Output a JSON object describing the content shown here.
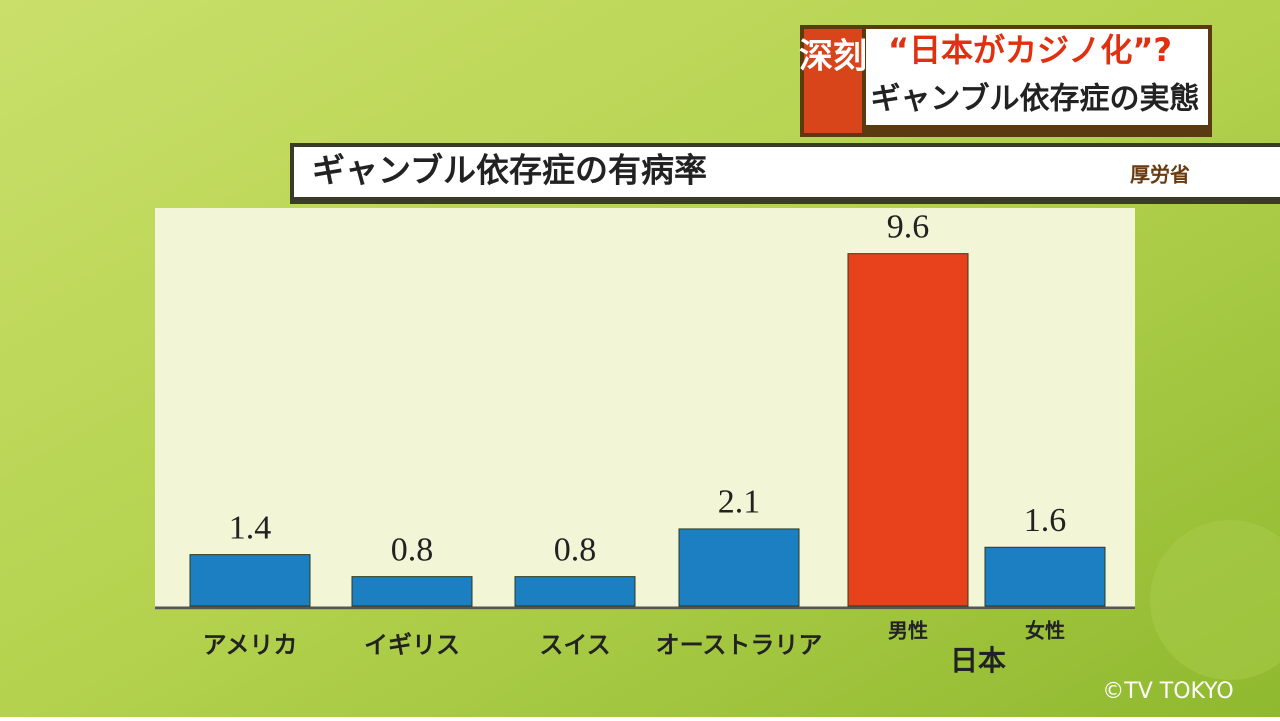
{
  "header": {
    "badge": "深刻",
    "headline": "“日本がカジノ化”?",
    "subheadline": "ギャンブル依存症の実態"
  },
  "chart_data": {
    "type": "bar",
    "title": "ギャンブル依存症の有病率",
    "source": "厚労省",
    "categories": [
      "アメリカ",
      "イギリス",
      "スイス",
      "オーストラリア",
      "男性",
      "女性"
    ],
    "group_label": "日本",
    "values": [
      1.4,
      0.8,
      0.8,
      2.1,
      9.6,
      1.6
    ],
    "colors": [
      "#1b7fc1",
      "#1b7fc1",
      "#1b7fc1",
      "#1b7fc1",
      "#e8421c",
      "#1b7fc1"
    ]
  },
  "footer": {
    "copyright": "©TV TOKYO"
  }
}
